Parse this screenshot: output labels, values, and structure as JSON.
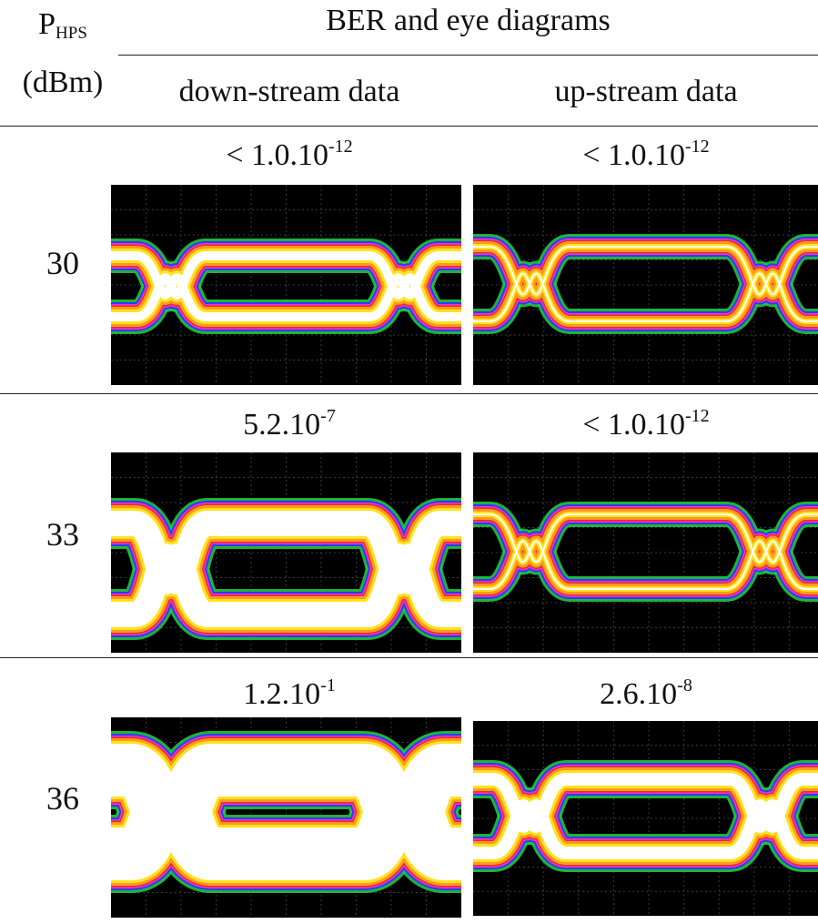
{
  "header": {
    "p_label": "P",
    "p_sub": "HPS",
    "unit": "(dBm)",
    "group_title": "BER and eye diagrams",
    "col_down": "down-stream data",
    "col_up": "up-stream data"
  },
  "rows": [
    {
      "power": "30",
      "down_ber_base": "< 1.0.10",
      "down_ber_exp": "-12",
      "up_ber_base": "< 1.0.10",
      "up_ber_exp": "-12"
    },
    {
      "power": "33",
      "down_ber_base": "5.2.10",
      "down_ber_exp": "-7",
      "up_ber_base": "< 1.0.10",
      "up_ber_exp": "-12"
    },
    {
      "power": "36",
      "down_ber_base": "1.2.10",
      "down_ber_exp": "-1",
      "up_ber_base": "2.6.10",
      "up_ber_exp": "-8"
    }
  ],
  "colors": {
    "background": "#000000",
    "grid": "#3a3a3a",
    "green": "#22c83c",
    "blue": "#2a3cff",
    "magenta": "#ff2ad0",
    "red": "#e0302a",
    "orange": "#ff9a1e",
    "yellow": "#ffe21e",
    "white": "#ffffff"
  }
}
